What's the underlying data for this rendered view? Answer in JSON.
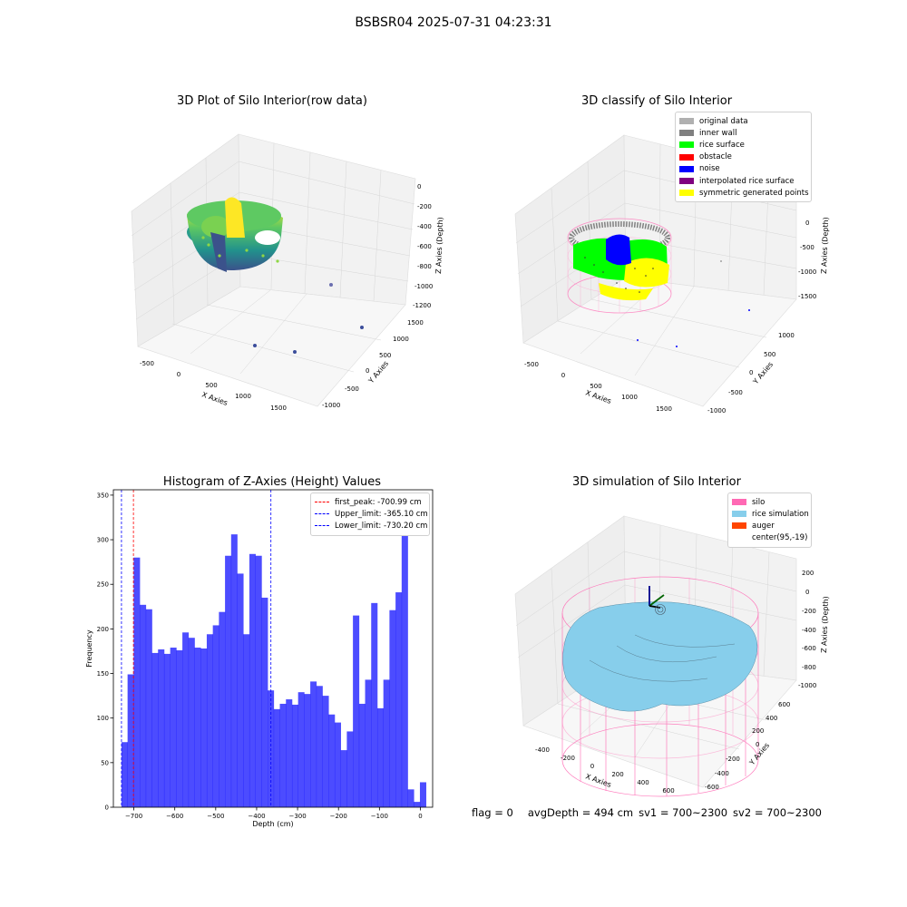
{
  "suptitle": "BSBSR04 2025-07-31 04:23:31",
  "panels": {
    "raw": {
      "title": "3D Plot of Silo Interior(row data)",
      "x_label": "X Axies",
      "y_label": "Y Axies",
      "z_label": "Z Axies (Depth)",
      "x_ticks": [
        "-500",
        "0",
        "500",
        "1000",
        "1500"
      ],
      "y_ticks": [
        "-1000",
        "-500",
        "0",
        "500",
        "1000",
        "1500"
      ],
      "z_ticks": [
        "0",
        "-200",
        "-400",
        "-600",
        "-800",
        "-1000",
        "-1200"
      ]
    },
    "classify": {
      "title": "3D classify of Silo Interior",
      "x_label": "X Axies",
      "y_label": "Y Axies",
      "z_label": "Z Axies (Depth)",
      "x_ticks": [
        "-500",
        "0",
        "500",
        "1000",
        "1500"
      ],
      "y_ticks": [
        "-1000",
        "-500",
        "0",
        "500",
        "1000"
      ],
      "z_ticks": [
        "500",
        "0",
        "-500",
        "-1000",
        "-1500"
      ],
      "legend": [
        {
          "label": "original data",
          "color": "#b0b0b0"
        },
        {
          "label": "inner wall",
          "color": "#808080"
        },
        {
          "label": "rice surface",
          "color": "#00ff00"
        },
        {
          "label": "obstacle",
          "color": "#ff0000"
        },
        {
          "label": "noise",
          "color": "#0000ff"
        },
        {
          "label": "interpolated rice surface",
          "color": "#800080"
        },
        {
          "label": "symmetric generated points",
          "color": "#ffff00"
        }
      ]
    },
    "simulation": {
      "title": "3D simulation of Silo Interior",
      "x_label": "X Axies",
      "y_label": "Y Axies",
      "z_label": "Z Axies (Depth)",
      "x_ticks": [
        "-400",
        "-200",
        "0",
        "200",
        "400",
        "600"
      ],
      "y_ticks": [
        "-600",
        "-400",
        "-200",
        "0",
        "200",
        "400",
        "600"
      ],
      "z_ticks": [
        "200",
        "0",
        "-200",
        "-400",
        "-600",
        "-800",
        "-1000"
      ],
      "legend": [
        {
          "label": "silo",
          "color": "#ff69b4"
        },
        {
          "label": "rice simulation",
          "color": "#87ceeb"
        },
        {
          "label": "auger",
          "color": "#ff4500"
        },
        {
          "label": "center(95,-19)",
          "color": ""
        }
      ]
    }
  },
  "footer": {
    "flag": "flag = 0",
    "avg_depth": "avgDepth = 494 cm",
    "sv1": "sv1 = 700~2300",
    "sv2": "sv2 = 700~2300"
  },
  "chart_data": {
    "type": "bar",
    "title": "Histogram of Z-Axies (Height) Values",
    "xlabel": "Depth (cm)",
    "ylabel": "Frequency",
    "xlim": [
      -750,
      30
    ],
    "ylim": [
      0,
      356
    ],
    "x_ticks": [
      -700,
      -600,
      -500,
      -400,
      -300,
      -200,
      -100,
      0
    ],
    "y_ticks": [
      0,
      50,
      100,
      150,
      200,
      250,
      300,
      350
    ],
    "bin_start": -730.2,
    "bin_width": 14.88,
    "values": [
      73,
      149,
      280,
      227,
      222,
      173,
      177,
      172,
      179,
      176,
      196,
      190,
      179,
      178,
      194,
      204,
      219,
      282,
      306,
      262,
      194,
      284,
      282,
      235,
      131,
      110,
      116,
      121,
      115,
      129,
      127,
      141,
      136,
      125,
      104,
      95,
      64,
      85,
      215,
      116,
      143,
      229,
      111,
      143,
      221,
      241,
      341,
      20,
      6,
      28
    ],
    "color": "#0000ff",
    "lines": [
      {
        "label": "first_peak: -700.99 cm",
        "x": -700.99,
        "color": "#ff0000"
      },
      {
        "label": "Upper_limit: -365.10 cm",
        "x": -365.1,
        "color": "#0000ff"
      },
      {
        "label": "Lower_limit: -730.20 cm",
        "x": -730.2,
        "color": "#0000ff"
      }
    ]
  }
}
